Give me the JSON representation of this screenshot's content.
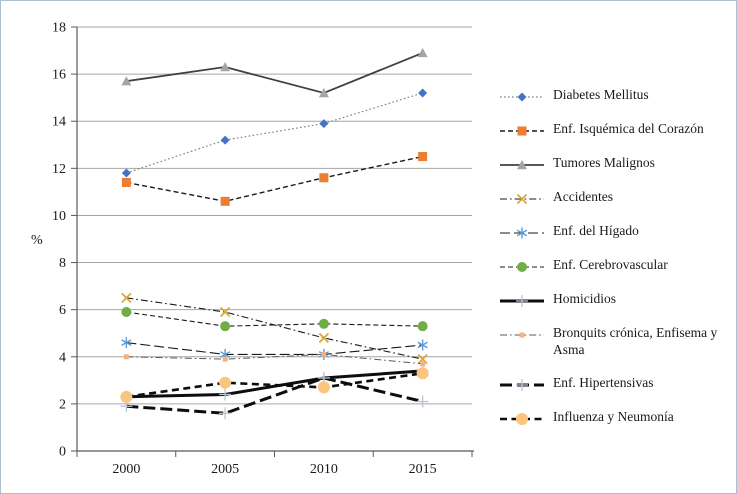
{
  "chart_data": {
    "type": "line",
    "title": "",
    "xlabel": "",
    "ylabel": "%",
    "ylim": [
      0,
      18
    ],
    "y_ticks": [
      0,
      2,
      4,
      6,
      8,
      10,
      12,
      14,
      16,
      18
    ],
    "x": [
      "2000",
      "2005",
      "2010",
      "2015"
    ],
    "grid": "horizontal",
    "legend_position": "right",
    "series": [
      {
        "name": "Diabetes Mellitus",
        "values": [
          11.8,
          13.2,
          13.9,
          15.2
        ],
        "marker": "diamond",
        "marker_color": "#4472C4",
        "marker_size": 4.5,
        "line_color": "#808080",
        "line_style": "dotted",
        "line_width": 1.2
      },
      {
        "name": "Enf. Isquémica del Corazón",
        "values": [
          11.4,
          10.6,
          11.6,
          12.5
        ],
        "marker": "square",
        "marker_color": "#ED7D31",
        "marker_size": 4.5,
        "line_color": "#1a1a1a",
        "line_style": "dashed",
        "line_width": 1.4
      },
      {
        "name": "Tumores Malignos",
        "values": [
          15.7,
          16.3,
          15.2,
          16.9
        ],
        "marker": "triangle",
        "marker_color": "#A5A5A5",
        "marker_size": 5,
        "line_color": "#404040",
        "line_style": "solid",
        "line_width": 1.8
      },
      {
        "name": "Accidentes",
        "values": [
          6.5,
          5.9,
          4.8,
          3.9
        ],
        "marker": "xmark",
        "marker_color": "#D9A93C",
        "marker_size": 4.5,
        "line_color": "#1a1a1a",
        "line_style": "dashdot",
        "line_width": 1.1
      },
      {
        "name": "Enf. del Hígado",
        "values": [
          4.6,
          4.1,
          4.1,
          4.5
        ],
        "marker": "asterisk",
        "marker_color": "#5B9BD5",
        "marker_size": 5.5,
        "line_color": "#1a1a1a",
        "line_style": "longdash",
        "line_width": 1.1
      },
      {
        "name": "Enf. Cerebrovascular",
        "values": [
          5.9,
          5.3,
          5.4,
          5.3
        ],
        "marker": "circle",
        "marker_color": "#70AD47",
        "marker_size": 5,
        "line_color": "#1a1a1a",
        "line_style": "dashed",
        "line_width": 1.1
      },
      {
        "name": "Homicidios",
        "values": [
          2.3,
          2.4,
          3.1,
          3.4
        ],
        "marker": "plus",
        "marker_color": "#b9c6d4",
        "marker_size": 6,
        "line_color": "#0d0d0d",
        "line_style": "solid",
        "line_width": 3
      },
      {
        "name": "Bronquits crónica, Enfisema y Asma",
        "values": [
          4.0,
          3.9,
          4.1,
          3.7
        ],
        "marker": "smallsquare",
        "marker_color": "#F4B183",
        "marker_size": 2.5,
        "line_color": "#595959",
        "line_style": "dashdot",
        "line_width": 1
      },
      {
        "name": "Enf. Hipertensivas",
        "values": [
          1.9,
          1.6,
          3.1,
          2.1
        ],
        "marker": "plus",
        "marker_color": "#b9c6d4",
        "marker_size": 6,
        "line_color": "#0d0d0d",
        "line_style": "thicklongdash",
        "line_width": 3
      },
      {
        "name": "Influenza y Neumonía",
        "values": [
          2.3,
          2.9,
          2.7,
          3.3
        ],
        "marker": "circle",
        "marker_color": "#FAC57D",
        "marker_size": 6,
        "line_color": "#0d0d0d",
        "line_style": "thickdash",
        "line_width": 2.6
      }
    ]
  }
}
